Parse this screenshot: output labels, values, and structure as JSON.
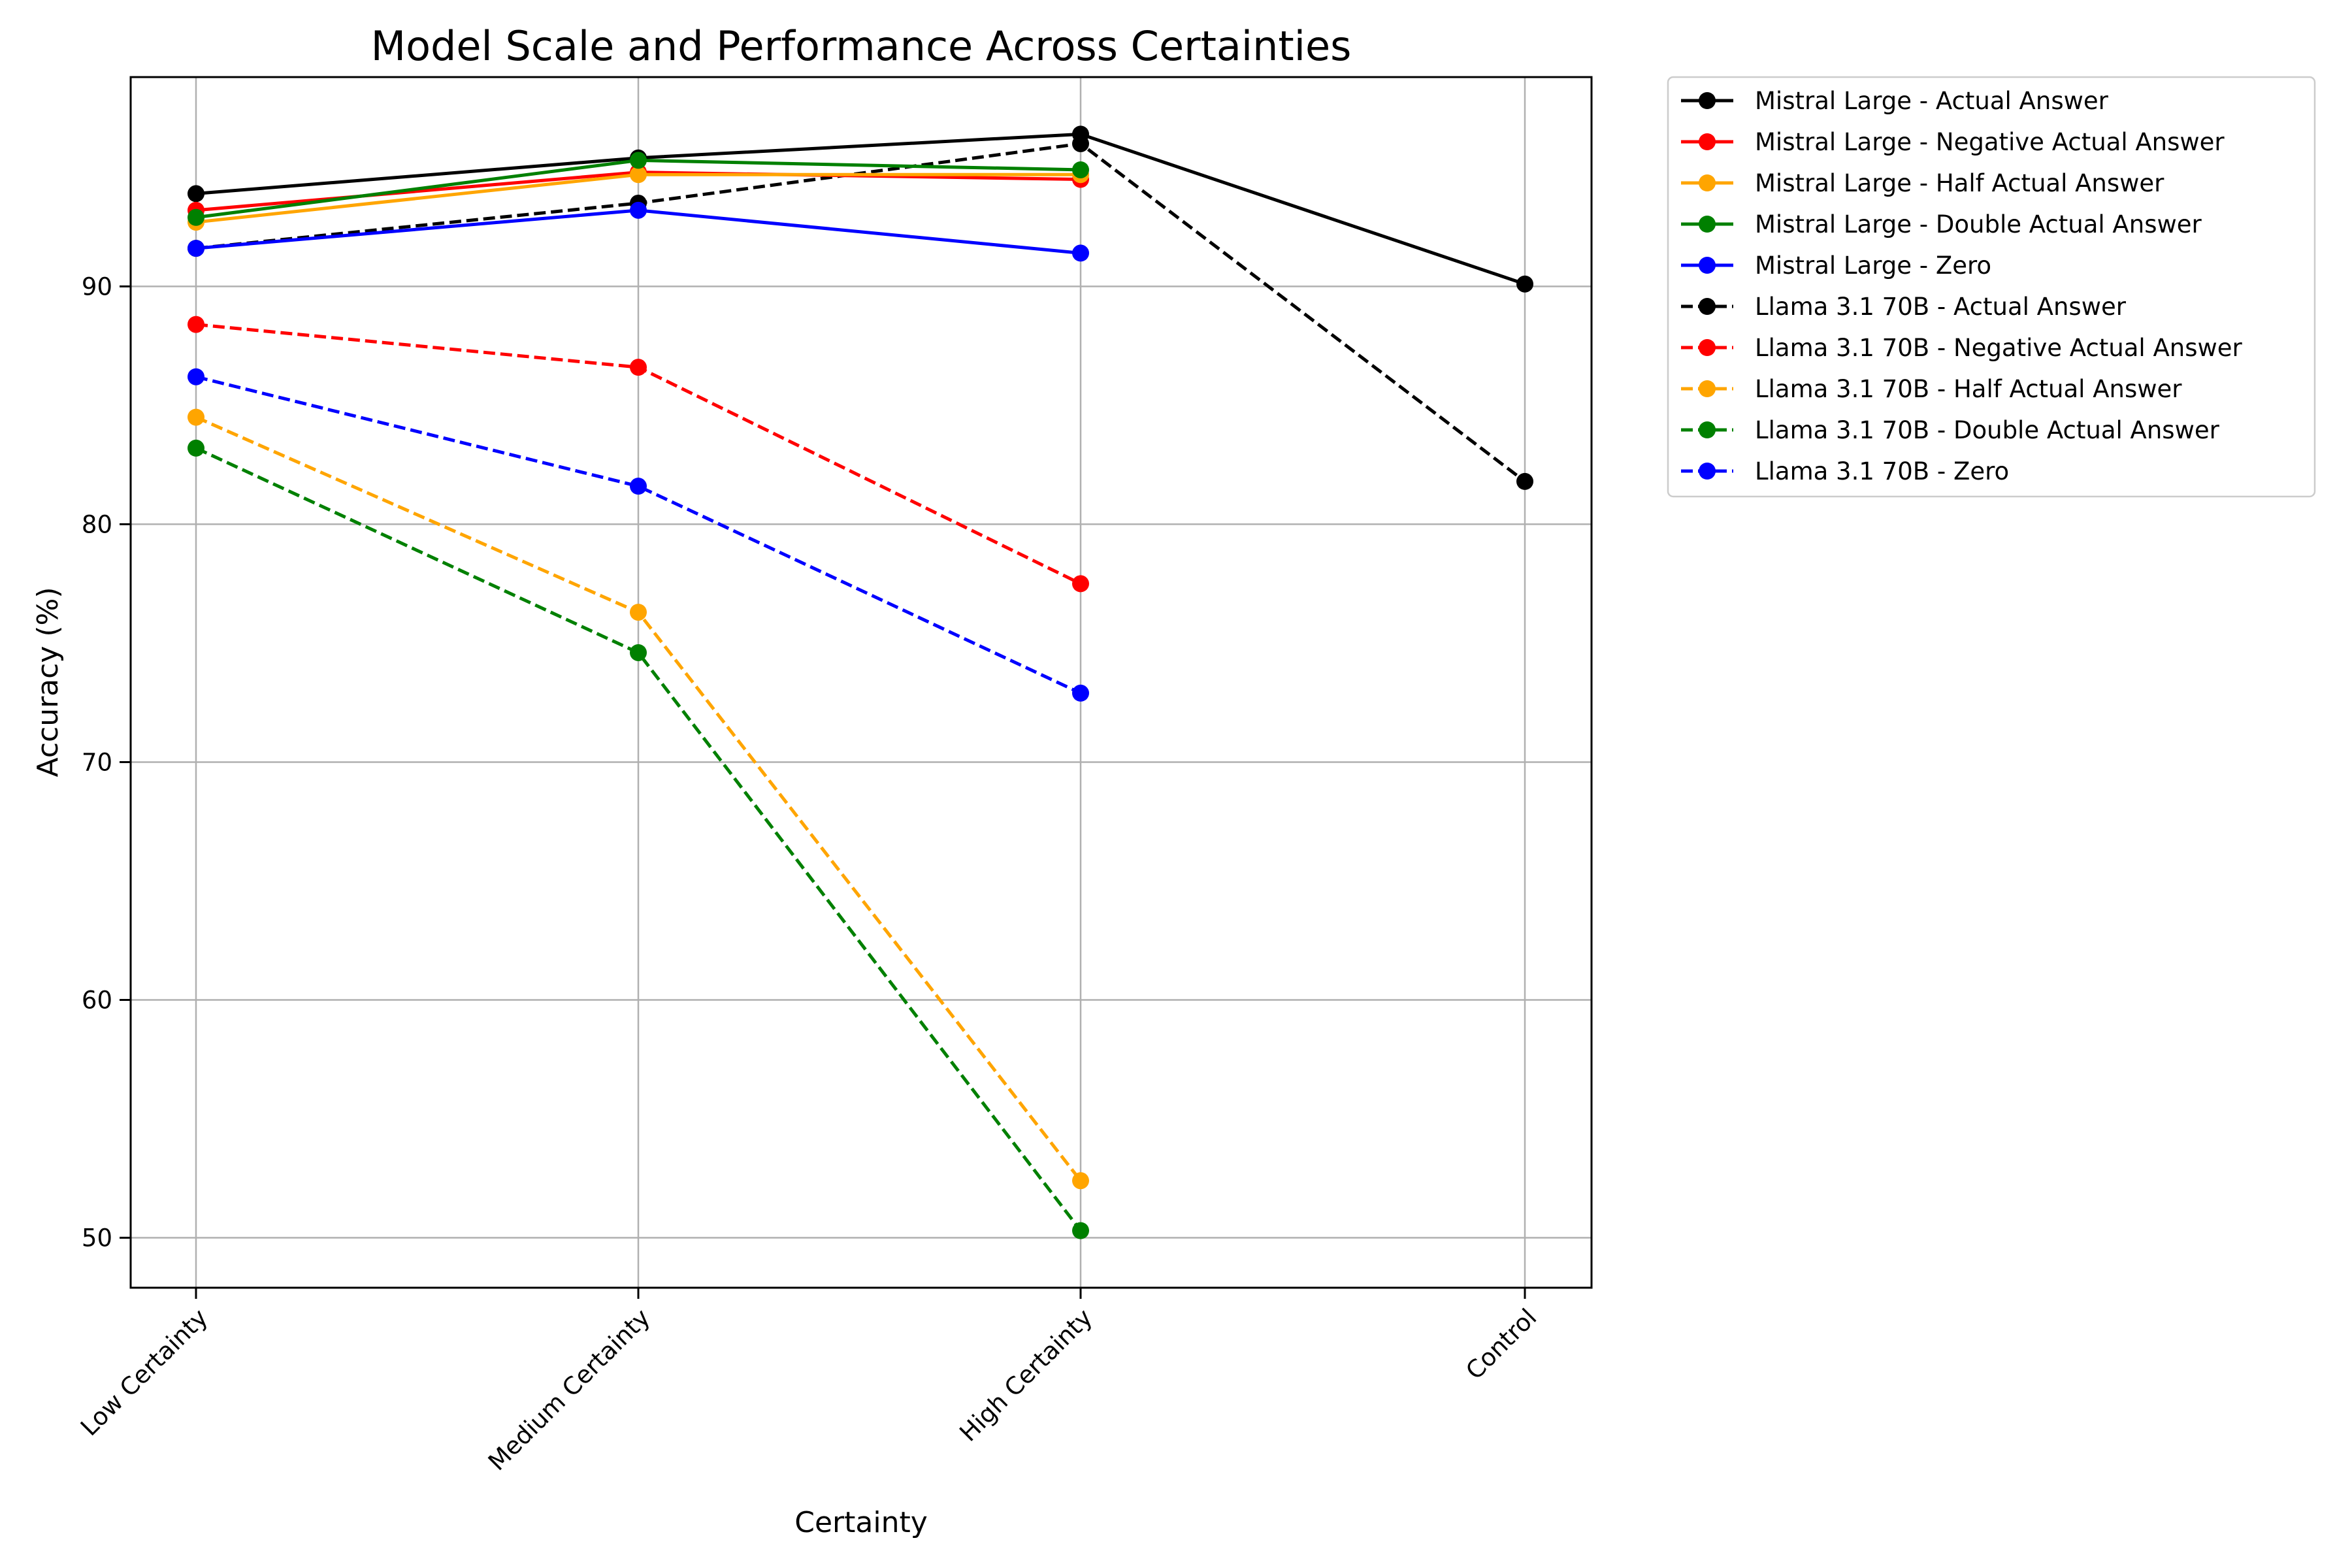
{
  "chart_data": {
    "type": "line",
    "title": "Model Scale and Performance Across Certainties",
    "xlabel": "Certainty",
    "ylabel": "Accuracy (%)",
    "categories": [
      "Low Certainty",
      "Medium Certainty",
      "High Certainty",
      "Control"
    ],
    "yticks": [
      50,
      60,
      70,
      80,
      90
    ],
    "ylim": [
      47.9,
      98.8
    ],
    "grid": true,
    "legend_position": "outside-right-top",
    "series": [
      {
        "name": "Mistral Large - Actual Answer",
        "color": "#000000",
        "dash": "solid",
        "values": [
          93.9,
          95.4,
          96.4,
          90.1
        ]
      },
      {
        "name": "Mistral Large - Negative Actual Answer",
        "color": "#ff0000",
        "dash": "solid",
        "values": [
          93.2,
          94.8,
          94.5,
          null
        ]
      },
      {
        "name": "Mistral Large - Half Actual Answer",
        "color": "#ffa500",
        "dash": "solid",
        "values": [
          92.7,
          94.7,
          94.7,
          null
        ]
      },
      {
        "name": "Mistral Large - Double Actual Answer",
        "color": "#008000",
        "dash": "solid",
        "values": [
          92.9,
          95.3,
          94.9,
          null
        ]
      },
      {
        "name": "Mistral Large - Zero",
        "color": "#0000ff",
        "dash": "solid",
        "values": [
          91.6,
          93.2,
          91.4,
          null
        ]
      },
      {
        "name": "Llama 3.1 70B - Actual Answer",
        "color": "#000000",
        "dash": "dashed",
        "values": [
          91.6,
          93.5,
          96.0,
          81.8
        ]
      },
      {
        "name": "Llama 3.1 70B - Negative Actual Answer",
        "color": "#ff0000",
        "dash": "dashed",
        "values": [
          88.4,
          86.6,
          77.5,
          null
        ]
      },
      {
        "name": "Llama 3.1 70B - Half Actual Answer",
        "color": "#ffa500",
        "dash": "dashed",
        "values": [
          84.5,
          76.3,
          52.4,
          null
        ]
      },
      {
        "name": "Llama 3.1 70B - Double Actual Answer",
        "color": "#008000",
        "dash": "dashed",
        "values": [
          83.2,
          74.6,
          50.3,
          null
        ]
      },
      {
        "name": "Llama 3.1 70B - Zero",
        "color": "#0000ff",
        "dash": "dashed",
        "values": [
          86.2,
          81.6,
          72.9,
          null
        ]
      }
    ]
  }
}
